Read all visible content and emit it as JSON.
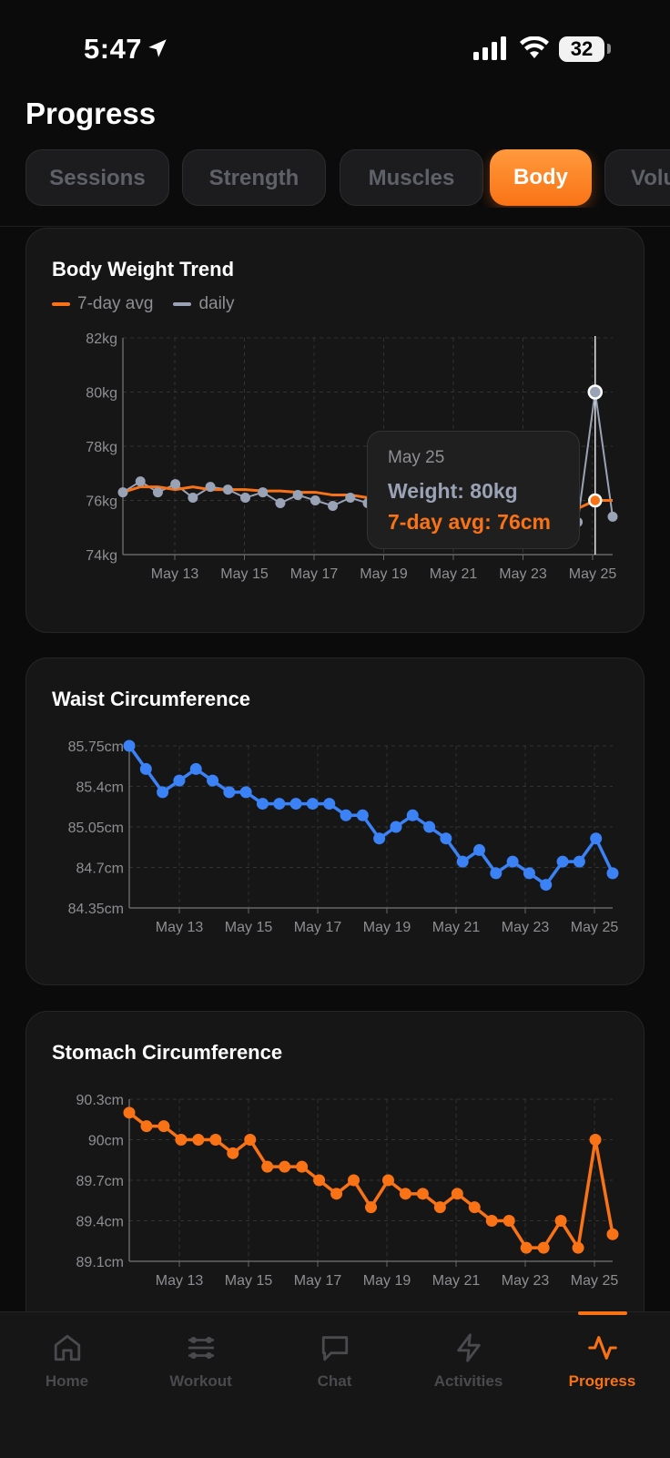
{
  "status": {
    "time": "5:47",
    "battery": "32"
  },
  "page": {
    "title": "Progress"
  },
  "tabs": [
    {
      "label": "Sessions",
      "active": false
    },
    {
      "label": "Strength",
      "active": false
    },
    {
      "label": "Muscles",
      "active": false
    },
    {
      "label": "Body",
      "active": true
    },
    {
      "label": "Volu",
      "active": false
    }
  ],
  "weight_card": {
    "title": "Body Weight Trend",
    "legend_avg": "7-day avg",
    "legend_daily": "daily",
    "tooltip": {
      "date": "May 25",
      "weight": "Weight: 80kg",
      "avg": "7-day avg: 76cm"
    }
  },
  "waist_card": {
    "title": "Waist Circumference"
  },
  "stomach_card": {
    "title": "Stomach Circumference"
  },
  "colors": {
    "accent": "#f97316",
    "blue": "#3b82f6",
    "daily": "#9aa3b5"
  },
  "nav": [
    {
      "label": "Home",
      "icon": "home-icon",
      "active": false
    },
    {
      "label": "Workout",
      "icon": "workout-icon",
      "active": false
    },
    {
      "label": "Chat",
      "icon": "chat-icon",
      "active": false
    },
    {
      "label": "Activities",
      "icon": "lightning-icon",
      "active": false
    },
    {
      "label": "Progress",
      "icon": "activity-pulse-icon",
      "active": true
    }
  ],
  "chart_data": [
    {
      "type": "line",
      "title": "Body Weight Trend",
      "x": [
        "May 11",
        "May 12",
        "May 12",
        "May 13",
        "May 13",
        "May 14",
        "May 14",
        "May 15",
        "May 15",
        "May 16",
        "May 16",
        "May 17",
        "May 17",
        "May 18",
        "May 18",
        "May 19",
        "May 19",
        "May 20",
        "May 20",
        "May 21",
        "May 21",
        "May 22",
        "May 22",
        "May 23",
        "May 23",
        "May 24",
        "May 24",
        "May 25",
        "May 25"
      ],
      "series": [
        {
          "name": "7-day avg",
          "values": [
            76.3,
            76.5,
            76.5,
            76.4,
            76.5,
            76.4,
            76.4,
            76.4,
            76.35,
            76.35,
            76.3,
            76.3,
            76.2,
            76.2,
            76.1,
            76.1,
            76.0,
            76.0,
            75.95,
            75.95,
            75.9,
            75.9,
            75.85,
            75.85,
            75.8,
            75.8,
            75.7,
            76.0,
            76.0
          ]
        },
        {
          "name": "daily",
          "values": [
            76.3,
            76.7,
            76.3,
            76.6,
            76.1,
            76.5,
            76.4,
            76.1,
            76.3,
            75.9,
            76.2,
            76.0,
            75.8,
            76.1,
            75.9,
            75.9,
            75.8,
            75.9,
            75.7,
            75.8,
            75.7,
            75.6,
            75.7,
            75.5,
            75.6,
            75.4,
            75.2,
            80.0,
            75.4
          ]
        }
      ],
      "xticks": [
        "May 13",
        "May 15",
        "May 17",
        "May 19",
        "May 21",
        "May 23",
        "May 25"
      ],
      "yticks": [
        "74kg",
        "76kg",
        "78kg",
        "80kg",
        "82kg"
      ],
      "ylim": [
        74,
        82
      ],
      "grid": true,
      "legend": "top-left"
    },
    {
      "type": "line",
      "title": "Waist Circumference",
      "series": [
        {
          "name": "",
          "values": [
            85.75,
            85.55,
            85.35,
            85.45,
            85.55,
            85.45,
            85.35,
            85.35,
            85.25,
            85.25,
            85.25,
            85.25,
            85.25,
            85.15,
            85.15,
            84.95,
            85.05,
            85.15,
            85.05,
            84.95,
            84.75,
            84.85,
            84.65,
            84.75,
            84.65,
            84.55,
            84.75,
            84.75,
            84.95,
            84.65
          ]
        }
      ],
      "xticks": [
        "May 13",
        "May 15",
        "May 17",
        "May 19",
        "May 21",
        "May 23",
        "May 25"
      ],
      "yticks": [
        "84.35cm",
        "84.7cm",
        "85.05cm",
        "85.4cm",
        "85.75cm"
      ],
      "ylim": [
        84.35,
        85.75
      ],
      "grid": true
    },
    {
      "type": "line",
      "title": "Stomach Circumference",
      "series": [
        {
          "name": "",
          "values": [
            90.2,
            90.1,
            90.1,
            90.0,
            90.0,
            90.0,
            89.9,
            90.0,
            89.8,
            89.8,
            89.8,
            89.7,
            89.6,
            89.7,
            89.5,
            89.7,
            89.6,
            89.6,
            89.5,
            89.6,
            89.5,
            89.4,
            89.4,
            89.2,
            89.2,
            89.4,
            89.2,
            90.0,
            89.3
          ]
        }
      ],
      "xticks": [
        "May 13",
        "May 15",
        "May 17",
        "May 19",
        "May 21",
        "May 23",
        "May 25"
      ],
      "yticks": [
        "89.1cm",
        "89.4cm",
        "89.7cm",
        "90cm",
        "90.3cm"
      ],
      "ylim": [
        89.1,
        90.3
      ],
      "grid": true
    }
  ]
}
